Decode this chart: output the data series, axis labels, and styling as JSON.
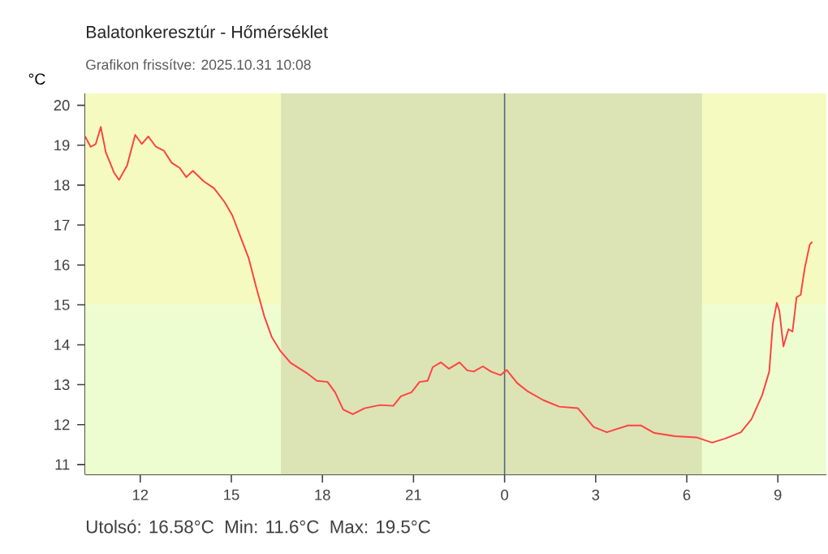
{
  "chart_data": {
    "type": "line",
    "title": "Balatonkeresztúr - Hőmérséklet",
    "subtitle": "Grafikon frissítve: 2025.10.31 10:08",
    "ylabel": "°C",
    "annotations": [
      "Utolsó: 16.58°C",
      "Min: 11.6°C",
      "Max: 19.5°C"
    ],
    "xlim": [
      "2025-10-30T10:11",
      "2025-10-31T10:36"
    ],
    "ylim": [
      10.75,
      20.3
    ],
    "xticks": [
      {
        "value": "2025-10-30T12:00",
        "label": "12"
      },
      {
        "value": "2025-10-30T15:00",
        "label": "15"
      },
      {
        "value": "2025-10-30T18:00",
        "label": "18"
      },
      {
        "value": "2025-10-30T21:00",
        "label": "21"
      },
      {
        "value": "2025-10-31T00:00",
        "label": "0"
      },
      {
        "value": "2025-10-31T03:00",
        "label": "3"
      },
      {
        "value": "2025-10-31T06:00",
        "label": "6"
      },
      {
        "value": "2025-10-31T09:00",
        "label": "9"
      }
    ],
    "yticks": [
      11,
      12,
      13,
      14,
      15,
      16,
      17,
      18,
      19,
      20
    ],
    "grid": false,
    "marker": "none",
    "line_style": "solid",
    "bands": [
      {
        "axis": "y",
        "from": 15,
        "to": 20.3,
        "color": "#f5fac0"
      },
      {
        "axis": "y",
        "from": 10.75,
        "to": 15,
        "color": "#eefdd0"
      },
      {
        "axis": "x",
        "from": "2025-10-30T16:38",
        "to": "2025-10-31T06:30",
        "color": "#dce3b5"
      }
    ],
    "ref_lines": [
      {
        "axis": "x",
        "value": "2025-10-31T00:00",
        "color": "#556677"
      }
    ],
    "series": [
      {
        "color": "#ff4040",
        "x": [
          "2025-10-30T10:11",
          "2025-10-30T10:22",
          "2025-10-30T10:32",
          "2025-10-30T10:42",
          "2025-10-30T10:52",
          "2025-10-30T11:08",
          "2025-10-30T11:18",
          "2025-10-30T11:34",
          "2025-10-30T11:50",
          "2025-10-30T12:03",
          "2025-10-30T12:16",
          "2025-10-30T12:31",
          "2025-10-30T12:47",
          "2025-10-30T13:02",
          "2025-10-30T13:18",
          "2025-10-30T13:31",
          "2025-10-30T13:44",
          "2025-10-30T14:05",
          "2025-10-30T14:26",
          "2025-10-30T14:47",
          "2025-10-30T15:02",
          "2025-10-30T15:18",
          "2025-10-30T15:34",
          "2025-10-30T15:49",
          "2025-10-30T16:05",
          "2025-10-30T16:20",
          "2025-10-30T16:36",
          "2025-10-30T16:57",
          "2025-10-30T17:28",
          "2025-10-30T17:49",
          "2025-10-30T18:10",
          "2025-10-30T18:25",
          "2025-10-30T18:41",
          "2025-10-30T19:00",
          "2025-10-30T19:23",
          "2025-10-30T19:54",
          "2025-10-30T20:20",
          "2025-10-30T20:35",
          "2025-10-30T20:56",
          "2025-10-30T21:12",
          "2025-10-30T21:28",
          "2025-10-30T21:38",
          "2025-10-30T21:54",
          "2025-10-30T22:10",
          "2025-10-30T22:31",
          "2025-10-30T22:46",
          "2025-10-30T22:59",
          "2025-10-30T23:17",
          "2025-10-30T23:33",
          "2025-10-30T23:52",
          "2025-10-31T00:04",
          "2025-10-31T00:25",
          "2025-10-31T00:46",
          "2025-10-31T01:17",
          "2025-10-31T01:48",
          "2025-10-31T02:25",
          "2025-10-31T02:56",
          "2025-10-31T03:22",
          "2025-10-31T04:04",
          "2025-10-31T04:29",
          "2025-10-31T04:56",
          "2025-10-31T05:37",
          "2025-10-31T06:19",
          "2025-10-31T06:50",
          "2025-10-31T07:16",
          "2025-10-31T07:47",
          "2025-10-31T08:08",
          "2025-10-31T08:29",
          "2025-10-31T08:43",
          "2025-10-31T08:50",
          "2025-10-31T08:58",
          "2025-10-31T09:03",
          "2025-10-31T09:11",
          "2025-10-31T09:21",
          "2025-10-31T09:29",
          "2025-10-31T09:37",
          "2025-10-31T09:45",
          "2025-10-31T09:53",
          "2025-10-31T10:03",
          "2025-10-31T10:08"
        ],
        "values": [
          19.22,
          18.96,
          19.03,
          19.46,
          18.82,
          18.32,
          18.13,
          18.49,
          19.26,
          19.03,
          19.22,
          18.96,
          18.86,
          18.56,
          18.43,
          18.2,
          18.36,
          18.1,
          17.92,
          17.57,
          17.24,
          16.71,
          16.18,
          15.45,
          14.72,
          14.19,
          13.86,
          13.55,
          13.3,
          13.1,
          13.07,
          12.81,
          12.38,
          12.26,
          12.41,
          12.49,
          12.47,
          12.71,
          12.81,
          13.07,
          13.1,
          13.44,
          13.56,
          13.4,
          13.56,
          13.36,
          13.33,
          13.46,
          13.33,
          13.24,
          13.37,
          13.04,
          12.83,
          12.61,
          12.45,
          12.41,
          11.94,
          11.81,
          11.98,
          11.98,
          11.79,
          11.71,
          11.68,
          11.55,
          11.65,
          11.81,
          12.14,
          12.74,
          13.33,
          14.52,
          15.05,
          14.85,
          13.96,
          14.39,
          14.33,
          15.19,
          15.25,
          15.91,
          16.51,
          16.58
        ]
      }
    ]
  }
}
